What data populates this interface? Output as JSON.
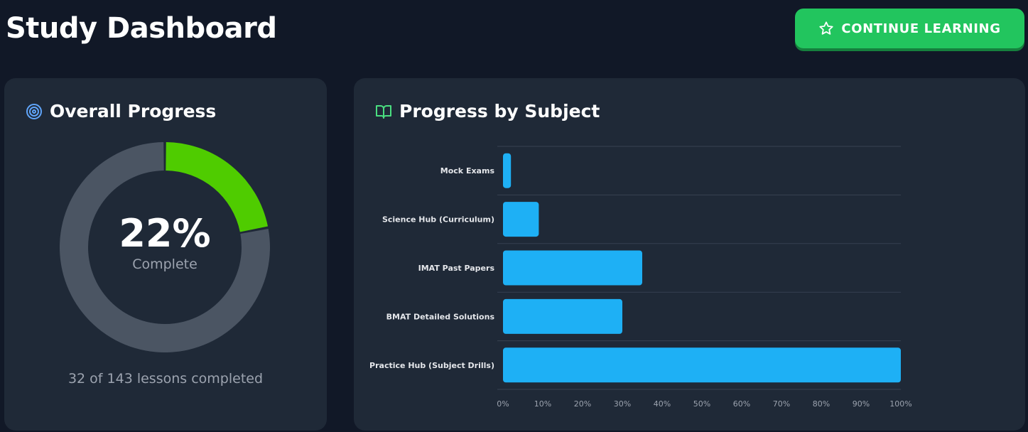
{
  "header": {
    "title": "Study Dashboard",
    "continue_label": "CONTINUE LEARNING",
    "continue_icon": "star-icon"
  },
  "overall": {
    "title": "Overall Progress",
    "icon": "target-icon",
    "percent_text": "22%",
    "percent_value": 22,
    "complete_label": "Complete",
    "lessons_text": "32 of 143 lessons completed"
  },
  "subjects": {
    "title": "Progress by Subject",
    "icon": "book-open-icon"
  },
  "colors": {
    "accent": "#22c55e",
    "donut_fill": "#4fcc00",
    "donut_track": "#4b5563",
    "bar": "#1eb0f5",
    "card": "#1f2937",
    "background": "#111827"
  },
  "chart_data": {
    "type": "bar",
    "orientation": "horizontal",
    "categories": [
      "Mock Exams",
      "Science Hub (Curriculum)",
      "IMAT Past Papers",
      "BMAT Detailed Solutions",
      "Practice Hub (Subject Drills)"
    ],
    "values": [
      2,
      9,
      35,
      30,
      100
    ],
    "xlim": [
      0,
      100
    ],
    "x_ticks": [
      "0%",
      "10%",
      "20%",
      "30%",
      "40%",
      "50%",
      "60%",
      "70%",
      "80%",
      "90%",
      "100%"
    ],
    "grid": true,
    "legend": "none"
  }
}
